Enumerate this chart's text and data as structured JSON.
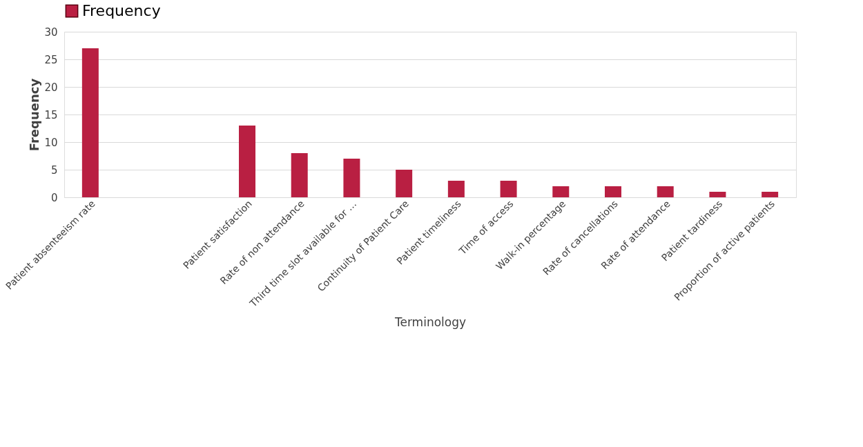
{
  "chart_data": {
    "type": "bar",
    "xlabel": "Terminology",
    "ylabel": "Frequency",
    "categories": [
      "Patient absenteeism rate",
      null,
      null,
      "Patient satisfaction",
      "Rate of non attendance",
      "Third time slot available for …",
      "Continuity of Patient Care",
      "Patient timeliness",
      "Time of access",
      "Walk-in percentage",
      "Rate of cancellations",
      "Rate of attendance",
      "Patient tardiness",
      "Proportion of active patients"
    ],
    "series": [
      {
        "name": "Frequency",
        "color": "#b91f42",
        "values": [
          27,
          null,
          null,
          13,
          8,
          7,
          5,
          3,
          3,
          2,
          2,
          2,
          1,
          1
        ]
      }
    ],
    "ylim": [
      0,
      30
    ],
    "yticks": [
      0,
      5,
      10,
      15,
      20,
      25,
      30
    ],
    "grid": "y",
    "legend": "top"
  }
}
